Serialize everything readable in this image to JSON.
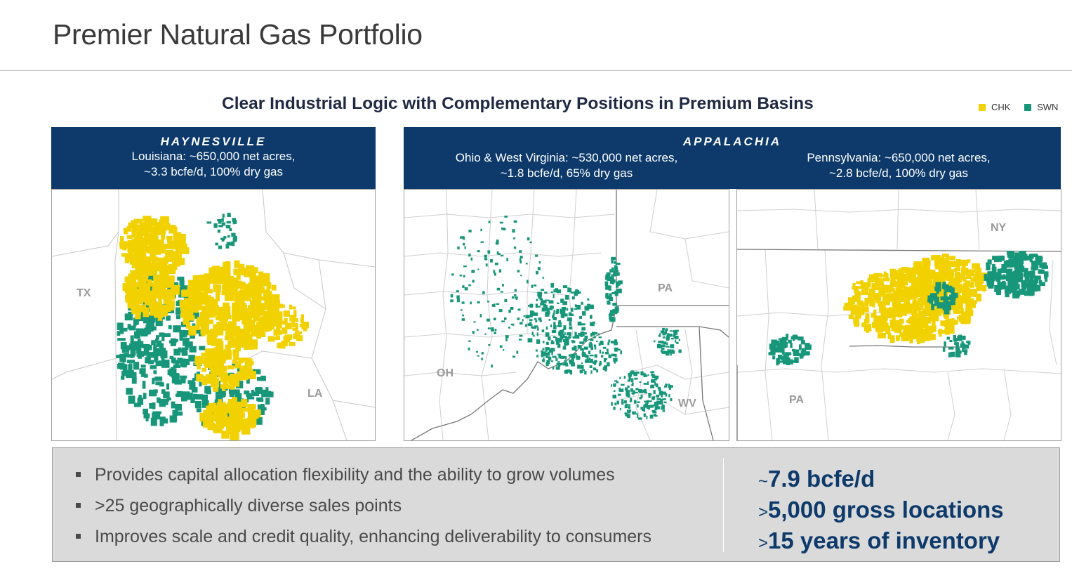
{
  "page": {
    "title": "Premier Natural Gas Portfolio",
    "subtitle": "Clear Industrial Logic with Complementary Positions in Premium Basins"
  },
  "legend": [
    {
      "label": "CHK",
      "color": "#f2d100"
    },
    {
      "label": "SWN",
      "color": "#17967a"
    }
  ],
  "colors": {
    "header_blue": "#0d3a6b",
    "chk_yellow": "#f2d100",
    "swn_green": "#17967a"
  },
  "haynesville": {
    "region": "HAYNESVILLE",
    "line1": "Louisiana: ~650,000 net acres,",
    "line2": "~3.3 bcfe/d, 100% dry gas",
    "states": [
      "TX",
      "LA"
    ]
  },
  "appalachia": {
    "region": "APPALACHIA",
    "ohwv_line1": "Ohio & West Virginia: ~530,000 net acres,",
    "ohwv_line2": "~1.8 bcfe/d, 65% dry gas",
    "pa_line1": "Pennsylvania: ~650,000 net acres,",
    "pa_line2": "~2.8 bcfe/d, 100% dry gas",
    "ohwv_states": [
      "PA",
      "OH",
      "WV"
    ],
    "pa_states": [
      "NY",
      "PA"
    ]
  },
  "bullets": [
    "Provides capital allocation flexibility and the ability to grow volumes",
    ">25 geographically diverse sales points",
    "Improves scale and credit quality, enhancing deliverability to consumers"
  ],
  "stats": [
    {
      "prefix": "~",
      "text": "7.9 bcfe/d"
    },
    {
      "prefix": ">",
      "text": "5,000 gross locations"
    },
    {
      "prefix": ">",
      "text": "15 years of inventory"
    }
  ]
}
